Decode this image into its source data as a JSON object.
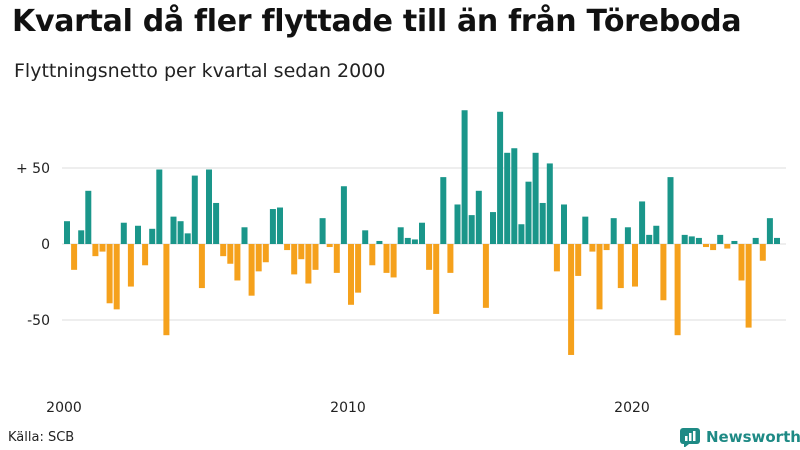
{
  "title": "Kvartal då fler flyttade till än från Töreboda",
  "subtitle": "Flyttningsnetto per kvartal sedan 2000",
  "source": "Källa: SCB",
  "brand": "Newsworthy",
  "colors": {
    "positive": "#1a968a",
    "negative": "#f5a11c",
    "grid": "#dddddd",
    "brand": "#1e8a85"
  },
  "chart_data": {
    "type": "bar",
    "x_start_year": 2000,
    "periods_per_year": 4,
    "y_ticks": [
      50,
      0,
      -50
    ],
    "y_tick_labels": [
      "+ 50",
      "0",
      "-50"
    ],
    "x_tick_labels": [
      "2000",
      "2010",
      "2020"
    ],
    "ylim": [
      -80,
      90
    ],
    "grid": true,
    "values": [
      15,
      -17,
      9,
      35,
      -8,
      -5,
      -39,
      -43,
      14,
      -28,
      12,
      -14,
      10,
      49,
      -60,
      18,
      15,
      7,
      45,
      -29,
      49,
      27,
      -8,
      -13,
      -24,
      11,
      -34,
      -18,
      -12,
      23,
      24,
      -4,
      -20,
      -10,
      -26,
      -17,
      17,
      -2,
      -19,
      38,
      -40,
      -32,
      9,
      -14,
      2,
      -19,
      -22,
      11,
      4,
      3,
      14,
      -17,
      -46,
      44,
      -19,
      26,
      88,
      19,
      35,
      -42,
      21,
      87,
      60,
      63,
      13,
      41,
      60,
      27,
      53,
      -18,
      26,
      -73,
      -21,
      18,
      -5,
      -43,
      -4,
      17,
      -29,
      11,
      -28,
      28,
      6,
      12,
      -37,
      44,
      -60,
      6,
      5,
      4,
      -2,
      -4,
      6,
      -3,
      2,
      -24,
      -55,
      4,
      -11,
      17,
      4
    ]
  }
}
